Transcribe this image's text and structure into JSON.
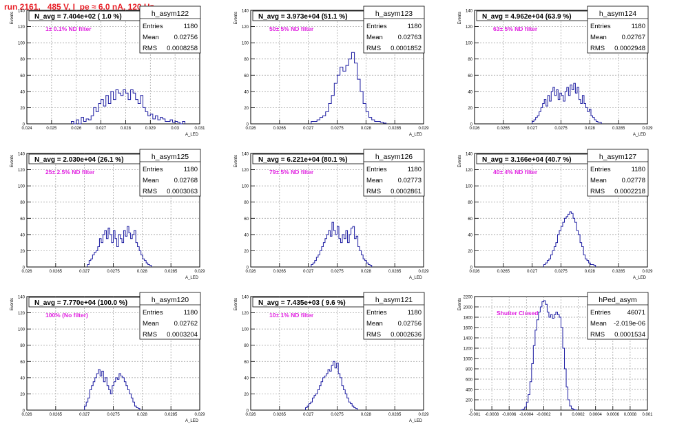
{
  "header": {
    "title": "run 2161,   485 V, I_pe ≈ 6.0 nA, 120 Hz"
  },
  "colors": {
    "title": "#e8222a",
    "histogram_line": "#1a1aa0",
    "annotation": "#e020e0",
    "axis": "#000000",
    "grid": "#9a9a9a"
  },
  "chart_data": [
    {
      "type": "histogram",
      "name": "h_asym122",
      "title": "N_avg = 7.404e+02 ( 1.0 %)",
      "annotation": "1± 0.1% ND filter",
      "stats": [
        {
          "label": "Entries",
          "value": "1180"
        },
        {
          "label": "Mean",
          "value": "0.02756"
        },
        {
          "label": "RMS",
          "value": "0.0008258"
        }
      ],
      "xlabel": "A_LED",
      "ylabel": "Events",
      "xlim": [
        0.024,
        0.031
      ],
      "ylim": [
        0,
        140
      ],
      "xticks": [
        0.024,
        0.025,
        0.026,
        0.027,
        0.028,
        0.029,
        0.03,
        0.031
      ],
      "xtick_labels": [
        "0.024",
        "0.025",
        "0.026",
        "0.027",
        "0.028",
        "0.029",
        "0.03",
        "0.031"
      ],
      "yticks": [
        0,
        20,
        40,
        60,
        80,
        100,
        120,
        140
      ],
      "bins": {
        "start": 0.0258,
        "width": 0.0001,
        "counts": [
          3,
          0,
          5,
          0,
          8,
          3,
          6,
          5,
          10,
          20,
          15,
          25,
          30,
          22,
          35,
          25,
          40,
          30,
          42,
          38,
          35,
          42,
          38,
          30,
          42,
          38,
          30,
          25,
          35,
          20,
          15,
          10,
          12,
          6,
          10,
          5,
          8,
          6,
          3,
          3,
          5,
          2,
          3,
          2,
          0,
          3
        ]
      }
    },
    {
      "type": "histogram",
      "name": "h_asym123",
      "title": "N_avg = 3.973e+04 (51.1 %)",
      "annotation": "50± 5% ND filter",
      "stats": [
        {
          "label": "Entries",
          "value": "1180"
        },
        {
          "label": "Mean",
          "value": "0.02763"
        },
        {
          "label": "RMS",
          "value": "0.0001852"
        }
      ],
      "xlabel": "A_LED",
      "ylabel": "Events",
      "xlim": [
        0.026,
        0.029
      ],
      "ylim": [
        0,
        140
      ],
      "xticks": [
        0.026,
        0.0265,
        0.027,
        0.0275,
        0.028,
        0.0285,
        0.029
      ],
      "xtick_labels": [
        "0.026",
        "0.0265",
        "0.027",
        "0.0275",
        "0.028",
        "0.0285",
        "0.029"
      ],
      "yticks": [
        0,
        20,
        40,
        60,
        80,
        100,
        120,
        140
      ],
      "bins": {
        "start": 0.02705,
        "width": 5e-05,
        "counts": [
          3,
          3,
          5,
          8,
          10,
          15,
          25,
          35,
          50,
          60,
          70,
          65,
          72,
          80,
          88,
          75,
          55,
          40,
          25,
          15,
          8,
          5,
          3,
          3,
          2,
          1
        ]
      }
    },
    {
      "type": "histogram",
      "name": "h_asym124",
      "title": "N_avg = 4.962e+04 (63.9 %)",
      "annotation": "63± 5% ND filter",
      "stats": [
        {
          "label": "Entries",
          "value": "1180"
        },
        {
          "label": "Mean",
          "value": "0.02767"
        },
        {
          "label": "RMS",
          "value": "0.0002948"
        }
      ],
      "xlabel": "A_LED",
      "ylabel": "Events",
      "xlim": [
        0.026,
        0.029
      ],
      "ylim": [
        0,
        140
      ],
      "xticks": [
        0.026,
        0.0265,
        0.027,
        0.0275,
        0.028,
        0.0285,
        0.029
      ],
      "xtick_labels": [
        "0.026",
        "0.0265",
        "0.027",
        "0.0275",
        "0.028",
        "0.0285",
        "0.029"
      ],
      "yticks": [
        0,
        20,
        40,
        60,
        80,
        100,
        120,
        140
      ],
      "bins": {
        "start": 0.027,
        "width": 3e-05,
        "counts": [
          3,
          5,
          8,
          10,
          15,
          20,
          25,
          30,
          22,
          35,
          28,
          40,
          45,
          35,
          42,
          30,
          38,
          35,
          28,
          40,
          45,
          35,
          48,
          42,
          50,
          38,
          45,
          30,
          25,
          35,
          25,
          20,
          15,
          18,
          10,
          8,
          5,
          3,
          2,
          2
        ]
      }
    },
    {
      "type": "histogram",
      "name": "h_asym125",
      "title": "N_avg = 2.030e+04 (26.1 %)",
      "annotation": "25± 2.5% ND filter",
      "stats": [
        {
          "label": "Entries",
          "value": "1180"
        },
        {
          "label": "Mean",
          "value": "0.02768"
        },
        {
          "label": "RMS",
          "value": "0.0003063"
        }
      ],
      "xlabel": "A_LED",
      "ylabel": "Events",
      "xlim": [
        0.026,
        0.029
      ],
      "ylim": [
        0,
        140
      ],
      "xticks": [
        0.026,
        0.0265,
        0.027,
        0.0275,
        0.028,
        0.0285,
        0.029
      ],
      "xtick_labels": [
        "0.026",
        "0.0265",
        "0.027",
        "0.0275",
        "0.028",
        "0.0285",
        "0.029"
      ],
      "yticks": [
        0,
        20,
        40,
        60,
        80,
        100,
        120,
        140
      ],
      "bins": {
        "start": 0.02705,
        "width": 3e-05,
        "counts": [
          3,
          8,
          10,
          15,
          18,
          20,
          25,
          35,
          30,
          40,
          45,
          35,
          48,
          40,
          30,
          45,
          35,
          25,
          40,
          35,
          30,
          45,
          38,
          50,
          42,
          35,
          40,
          45,
          30,
          25,
          20,
          15,
          10,
          8,
          5,
          3,
          2
        ]
      }
    },
    {
      "type": "histogram",
      "name": "h_asym126",
      "title": "N_avg = 6.221e+04 (80.1 %)",
      "annotation": "79± 5% ND filter",
      "stats": [
        {
          "label": "Entries",
          "value": "1180"
        },
        {
          "label": "Mean",
          "value": "0.02773"
        },
        {
          "label": "RMS",
          "value": "0.0002861"
        }
      ],
      "xlabel": "A_LED",
      "ylabel": "Events",
      "xlim": [
        0.026,
        0.029
      ],
      "ylim": [
        0,
        140
      ],
      "xticks": [
        0.026,
        0.0265,
        0.027,
        0.0275,
        0.028,
        0.0285,
        0.029
      ],
      "xtick_labels": [
        "0.026",
        "0.0265",
        "0.027",
        "0.0275",
        "0.028",
        "0.0285",
        "0.029"
      ],
      "yticks": [
        0,
        20,
        40,
        60,
        80,
        100,
        120,
        140
      ],
      "bins": {
        "start": 0.02705,
        "width": 3e-05,
        "counts": [
          3,
          5,
          8,
          12,
          15,
          20,
          25,
          30,
          35,
          40,
          45,
          38,
          55,
          45,
          40,
          50,
          35,
          30,
          40,
          35,
          45,
          30,
          40,
          48,
          50,
          35,
          38,
          25,
          20,
          15,
          10,
          8,
          5,
          3,
          2
        ]
      }
    },
    {
      "type": "histogram",
      "name": "h_asym127",
      "title": "N_avg = 3.166e+04 (40.7 %)",
      "annotation": "40± 4% ND filter",
      "stats": [
        {
          "label": "Entries",
          "value": "1180"
        },
        {
          "label": "Mean",
          "value": "0.02778"
        },
        {
          "label": "RMS",
          "value": "0.0002218"
        }
      ],
      "xlabel": "A_LED",
      "ylabel": "Events",
      "xlim": [
        0.026,
        0.029
      ],
      "ylim": [
        0,
        140
      ],
      "xticks": [
        0.026,
        0.0265,
        0.027,
        0.0275,
        0.028,
        0.0285,
        0.029
      ],
      "xtick_labels": [
        "0.026",
        "0.0265",
        "0.027",
        "0.0275",
        "0.028",
        "0.0285",
        "0.029"
      ],
      "yticks": [
        0,
        20,
        40,
        60,
        80,
        100,
        120,
        140
      ],
      "bins": {
        "start": 0.0272,
        "width": 3e-05,
        "counts": [
          3,
          5,
          8,
          10,
          15,
          20,
          25,
          30,
          40,
          45,
          50,
          55,
          60,
          62,
          65,
          68,
          66,
          60,
          55,
          45,
          40,
          30,
          25,
          15,
          10,
          8,
          5,
          3,
          3,
          2
        ]
      }
    },
    {
      "type": "histogram",
      "name": "h_asym120",
      "title": "N_avg = 7.770e+04 (100.0 %)",
      "annotation": "100% (No filter)",
      "stats": [
        {
          "label": "Entries",
          "value": "1180"
        },
        {
          "label": "Mean",
          "value": "0.02762"
        },
        {
          "label": "RMS",
          "value": "0.0003204"
        }
      ],
      "xlabel": "A_LED",
      "ylabel": "Events",
      "xlim": [
        0.026,
        0.029
      ],
      "ylim": [
        0,
        140
      ],
      "xticks": [
        0.026,
        0.0265,
        0.027,
        0.0275,
        0.028,
        0.0285,
        0.029
      ],
      "xtick_labels": [
        "0.026",
        "0.0265",
        "0.027",
        "0.0275",
        "0.028",
        "0.0285",
        "0.029"
      ],
      "yticks": [
        0,
        20,
        40,
        60,
        80,
        100,
        120,
        140
      ],
      "bins": {
        "start": 0.027,
        "width": 3e-05,
        "counts": [
          5,
          10,
          15,
          25,
          30,
          35,
          40,
          45,
          50,
          42,
          48,
          35,
          40,
          30,
          25,
          20,
          30,
          35,
          40,
          38,
          45,
          42,
          40,
          35,
          30,
          25,
          20,
          15,
          10,
          5,
          3,
          2
        ]
      }
    },
    {
      "type": "histogram",
      "name": "h_asym121",
      "title": "N_avg = 7.435e+03 ( 9.6 %)",
      "annotation": "10± 1% ND filter",
      "stats": [
        {
          "label": "Entries",
          "value": "1180"
        },
        {
          "label": "Mean",
          "value": "0.02756"
        },
        {
          "label": "RMS",
          "value": "0.0002636"
        }
      ],
      "xlabel": "A_LED",
      "ylabel": "Events",
      "xlim": [
        0.026,
        0.029
      ],
      "ylim": [
        0,
        140
      ],
      "xticks": [
        0.026,
        0.0265,
        0.027,
        0.0275,
        0.028,
        0.0285,
        0.029
      ],
      "xtick_labels": [
        "0.026",
        "0.0265",
        "0.027",
        "0.0275",
        "0.028",
        "0.0285",
        "0.029"
      ],
      "yticks": [
        0,
        20,
        40,
        60,
        80,
        100,
        120,
        140
      ],
      "bins": {
        "start": 0.02695,
        "width": 3e-05,
        "counts": [
          3,
          5,
          8,
          10,
          15,
          18,
          20,
          25,
          30,
          35,
          40,
          42,
          45,
          50,
          48,
          55,
          60,
          52,
          58,
          45,
          40,
          30,
          25,
          20,
          15,
          10,
          8,
          5,
          3,
          2
        ]
      }
    },
    {
      "type": "histogram",
      "name": "hPed_asym",
      "title": "",
      "annotation": "Shutter Closed",
      "stats": [
        {
          "label": "Entries",
          "value": "46071"
        },
        {
          "label": "Mean",
          "value": "-2.019e-06"
        },
        {
          "label": "RMS",
          "value": "0.0001534"
        }
      ],
      "xlabel": "",
      "ylabel": "Events",
      "xlim": [
        -0.001,
        0.001
      ],
      "ylim": [
        0,
        2200
      ],
      "xticks": [
        -0.001,
        -0.0008,
        -0.0006,
        -0.0004,
        -0.0002,
        0,
        0.0002,
        0.0004,
        0.0006,
        0.0008,
        0.001
      ],
      "xtick_labels": [
        "-0.001",
        "-0.0008",
        "-0.0006",
        "-0.0004",
        "-0.0002",
        "0",
        "0.0002",
        "0.0004",
        "0.0006",
        "0.0008",
        "0.001"
      ],
      "yticks": [
        0,
        200,
        400,
        600,
        800,
        1000,
        1200,
        1400,
        1600,
        1800,
        2000,
        2200
      ],
      "bins": {
        "start": -0.00046,
        "width": 2e-05,
        "counts": [
          5,
          20,
          60,
          150,
          300,
          550,
          900,
          1250,
          1550,
          1750,
          1900,
          2000,
          2100,
          2120,
          2050,
          1900,
          1800,
          1850,
          1780,
          1850,
          1900,
          1850,
          1800,
          1600,
          1200,
          800,
          450,
          200,
          80,
          30,
          10,
          3
        ]
      }
    }
  ]
}
